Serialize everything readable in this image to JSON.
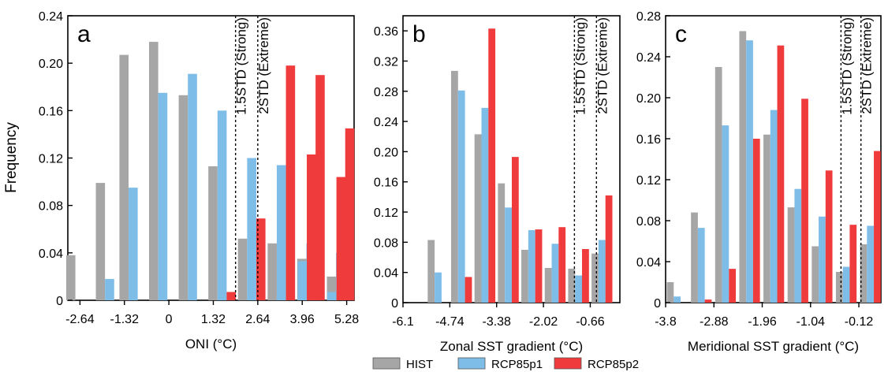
{
  "figure": {
    "ylabel": "Frequency",
    "legend": [
      {
        "name": "HIST",
        "color": "#a6a6a6"
      },
      {
        "name": "RCP85p1",
        "color": "#7fbde9"
      },
      {
        "name": "RCP85p2",
        "color": "#ef3b3b"
      }
    ],
    "colors": {
      "HIST": "#a6a6a6",
      "RCP85p1": "#7fbde9",
      "RCP85p2": "#ef3b3b"
    }
  },
  "chart_data": [
    {
      "type": "bar",
      "panel_label": "a",
      "xlabel": "ONI (°C)",
      "ylabel": "Frequency",
      "xlim": [
        -3.0,
        5.5
      ],
      "ylim": [
        0,
        0.24
      ],
      "xticks": [
        -2.64,
        -1.32,
        0,
        1.32,
        2.64,
        3.96,
        5.28
      ],
      "xtick_labels": [
        "-2.64",
        "-1.32",
        "0",
        "1.32",
        "2.64",
        "3.96",
        "5.28"
      ],
      "yticks": [
        0,
        0.04,
        0.08,
        0.12,
        0.16,
        0.2,
        0.24
      ],
      "ytick_labels": [
        "0",
        "0.04",
        "0.08",
        "0.12",
        "0.16",
        "0.20",
        "0.24"
      ],
      "x": [
        -2.64,
        -1.76,
        -1.06,
        -0.18,
        0.7,
        1.58,
        2.46,
        3.34,
        4.22,
        5.1
      ],
      "series": [
        {
          "name": "HIST",
          "values": [
            0.038,
            0.099,
            0.207,
            0.218,
            0.173,
            0.113,
            0.052,
            0.048,
            0.035,
            0.02
          ]
        },
        {
          "name": "RCP85p1",
          "values": [
            0,
            0.018,
            0.095,
            0.175,
            0.191,
            0.16,
            0.12,
            0.114,
            0.048,
            0.04
          ]
        },
        {
          "name": "RCP85p2",
          "values": [
            0,
            0,
            0,
            0,
            0,
            0.007,
            0.069,
            0.198,
            0.19,
            0.145
          ]
        }
      ],
      "vlines": [
        {
          "x": 1.98,
          "label": "1.5STD (Strong)"
        },
        {
          "x": 2.64,
          "label": "2STD (Extreme)"
        }
      ],
      "extra_bars": [
        {
          "x": 3.96,
          "HIST": 0,
          "RCP85p1": 0.033,
          "RCP85p2": 0.123
        },
        {
          "x": 4.84,
          "HIST": 0,
          "RCP85p1": 0.007,
          "RCP85p2": 0.104
        }
      ]
    },
    {
      "type": "bar",
      "panel_label": "b",
      "xlabel": "Zonal SST gradient (°C)",
      "ylabel": "",
      "xlim": [
        -6.1,
        0.2
      ],
      "ylim": [
        0,
        0.38
      ],
      "xticks": [
        -6.1,
        -4.74,
        -3.38,
        -2.02,
        -0.66
      ],
      "xtick_labels": [
        "-6.1",
        "-4.74",
        "-3.38",
        "-2.02",
        "-0.66"
      ],
      "yticks": [
        0,
        0.04,
        0.08,
        0.12,
        0.16,
        0.2,
        0.24,
        0.28,
        0.32,
        0.36
      ],
      "ytick_labels": [
        "0",
        "0.04",
        "0.08",
        "0.12",
        "0.16",
        "0.20",
        "0.24",
        "0.28",
        "0.32",
        "0.36"
      ],
      "x": [
        -5.08,
        -4.4,
        -3.72,
        -3.04,
        -2.36,
        -1.68,
        -1.0,
        -0.32
      ],
      "series": [
        {
          "name": "HIST",
          "values": [
            0.083,
            0.307,
            0.223,
            0.158,
            0.07,
            0.046,
            0.045,
            0.065
          ]
        },
        {
          "name": "RCP85p1",
          "values": [
            0.04,
            0.281,
            0.258,
            0.126,
            0.096,
            0.078,
            0.036,
            0.083
          ]
        },
        {
          "name": "RCP85p2",
          "values": [
            0,
            0.034,
            0.363,
            0.193,
            0.097,
            0.1,
            0.071,
            0.142
          ]
        }
      ],
      "vlines": [
        {
          "x": -1.12,
          "label": "1.5STD (Strong)"
        },
        {
          "x": -0.48,
          "label": "2STD (Extreme)"
        }
      ]
    },
    {
      "type": "bar",
      "panel_label": "c",
      "xlabel": "Meridional SST gradient (°C)",
      "ylabel": "",
      "xlim": [
        -3.8,
        0.3
      ],
      "ylim": [
        0,
        0.28
      ],
      "xticks": [
        -3.8,
        -2.88,
        -1.96,
        -1.04,
        -0.12
      ],
      "xtick_labels": [
        "-3.8",
        "-2.88",
        "-1.96",
        "-1.04",
        "-0.12"
      ],
      "yticks": [
        0,
        0.04,
        0.08,
        0.12,
        0.16,
        0.2,
        0.24,
        0.28
      ],
      "ytick_labels": [
        "0",
        "0.04",
        "0.08",
        "0.12",
        "0.16",
        "0.20",
        "0.24",
        "0.28"
      ],
      "x": [
        -3.58,
        -3.12,
        -2.66,
        -2.2,
        -1.74,
        -1.28,
        -0.82,
        -0.36,
        0.1
      ],
      "series": [
        {
          "name": "HIST",
          "values": [
            0.02,
            0.088,
            0.23,
            0.265,
            0.164,
            0.093,
            0.055,
            0.03,
            0.057
          ]
        },
        {
          "name": "RCP85p1",
          "values": [
            0.006,
            0.073,
            0.173,
            0.256,
            0.188,
            0.111,
            0.084,
            0.035,
            0.075
          ]
        },
        {
          "name": "RCP85p2",
          "values": [
            0,
            0.003,
            0.033,
            0.16,
            0.251,
            0.199,
            0.129,
            0.076,
            0.148
          ]
        }
      ],
      "vlines": [
        {
          "x": -0.46,
          "label": "1.5STD (Strong)"
        },
        {
          "x": -0.08,
          "label": "2STD (Extreme)"
        }
      ]
    }
  ]
}
